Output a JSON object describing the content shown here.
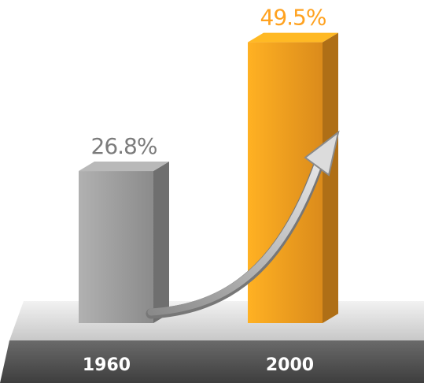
{
  "chart_data": {
    "type": "bar3d",
    "categories": [
      "1960",
      "2000"
    ],
    "values": [
      26.8,
      49.5
    ],
    "value_labels": [
      "26.8%",
      "49.5%"
    ],
    "colors": [
      "#9a9a9a",
      "#f39a1e"
    ]
  }
}
